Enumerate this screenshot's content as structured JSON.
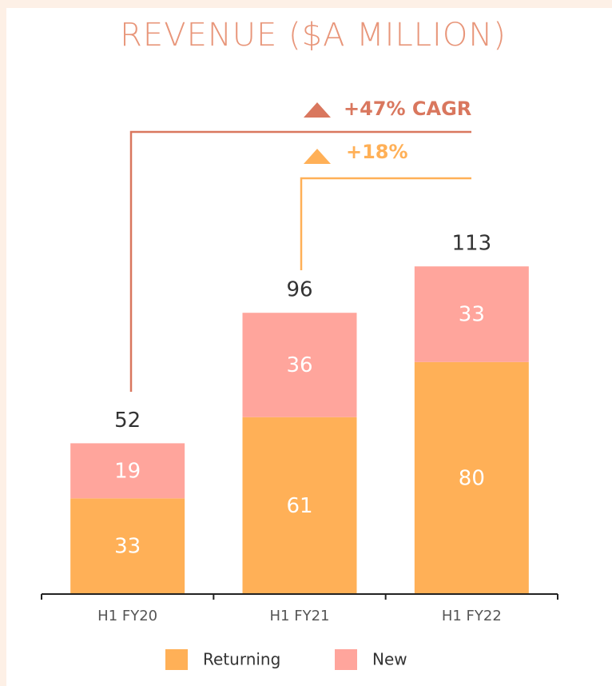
{
  "chart_data": {
    "type": "stacked_bar",
    "title": "REVENUE ($A MILLION)",
    "categories": [
      "H1 FY20",
      "H1 FY21",
      "H1 FY22"
    ],
    "series": [
      {
        "name": "Returning",
        "color": "#ffb057",
        "values": [
          33,
          61,
          80
        ]
      },
      {
        "name": "New",
        "color": "#ffa59c",
        "values": [
          19,
          36,
          33
        ]
      }
    ],
    "totals": [
      52,
      96,
      113
    ],
    "ylim": [
      0,
      150
    ],
    "annotations": [
      {
        "text": "+47% CAGR",
        "color": "#d9775e"
      },
      {
        "text": "+18%",
        "color": "#ffb057"
      }
    ]
  }
}
